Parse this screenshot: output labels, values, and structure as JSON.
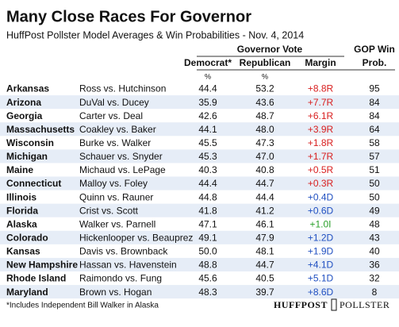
{
  "header": {
    "title": "Many Close Races For Governor",
    "subtitle": "HuffPost Pollster Model Averages & Win Probabilities - Nov. 4, 2014"
  },
  "table": {
    "group_header": "Governor Vote",
    "columns": [
      "Democrat*",
      "Republican",
      "Margin"
    ],
    "prob_header": [
      "GOP Win",
      "Prob."
    ],
    "units": [
      "%",
      "%"
    ],
    "row_shading": "#e6edf7",
    "margin_colors": {
      "R": "#d81e1e",
      "D": "#1f4fc1",
      "I": "#2aa02a"
    },
    "rows": [
      [
        "Arkansas",
        "Ross vs. Hutchinson",
        "44.4",
        "53.2",
        "+8.8R",
        "95"
      ],
      [
        "Arizona",
        "DuVal vs. Ducey",
        "35.9",
        "43.6",
        "+7.7R",
        "84"
      ],
      [
        "Georgia",
        "Carter vs. Deal",
        "42.6",
        "48.7",
        "+6.1R",
        "84"
      ],
      [
        "Massachusetts",
        "Coakley vs. Baker",
        "44.1",
        "48.0",
        "+3.9R",
        "64"
      ],
      [
        "Wisconsin",
        "Burke vs. Walker",
        "45.5",
        "47.3",
        "+1.8R",
        "58"
      ],
      [
        "Michigan",
        "Schauer vs. Snyder",
        "45.3",
        "47.0",
        "+1.7R",
        "57"
      ],
      [
        "Maine",
        "Michaud vs. LePage",
        "40.3",
        "40.8",
        "+0.5R",
        "51"
      ],
      [
        "Connecticut",
        "Malloy vs. Foley",
        "44.4",
        "44.7",
        "+0.3R",
        "50"
      ],
      [
        "Illinois",
        "Quinn vs. Rauner",
        "44.8",
        "44.4",
        "+0.4D",
        "50"
      ],
      [
        "Florida",
        "Crist vs. Scott",
        "41.8",
        "41.2",
        "+0.6D",
        "49"
      ],
      [
        "Alaska",
        "Walker vs. Parnell",
        "47.1",
        "46.1",
        "+1.0I",
        "48"
      ],
      [
        "Colorado",
        "Hickenlooper vs. Beauprez",
        "49.1",
        "47.9",
        "+1.2D",
        "43"
      ],
      [
        "Kansas",
        "Davis vs. Brownback",
        "50.0",
        "48.1",
        "+1.9D",
        "40"
      ],
      [
        "New Hampshire",
        "Hassan vs. Havenstein",
        "48.8",
        "44.7",
        "+4.1D",
        "36"
      ],
      [
        "Rhode Island",
        "Raimondo vs. Fung",
        "45.6",
        "40.5",
        "+5.1D",
        "32"
      ],
      [
        "Maryland",
        "Brown vs. Hogan",
        "48.3",
        "39.7",
        "+8.6D",
        "8"
      ]
    ]
  },
  "footer": {
    "note": "*Includes Independent Bill Walker in Alaska",
    "logo_left": "HUFFPOST",
    "logo_right": "POLLSTER"
  }
}
